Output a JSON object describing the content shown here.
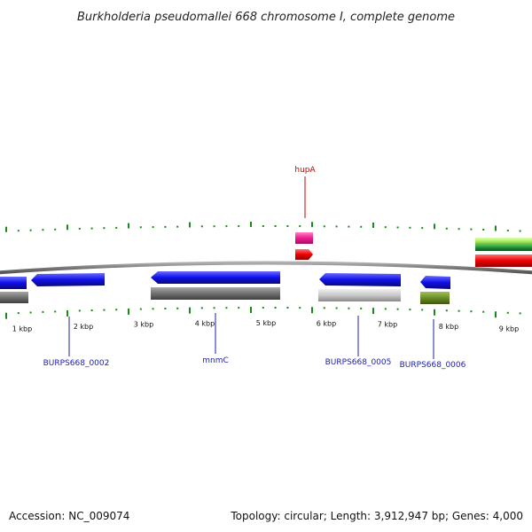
{
  "title": "Burkholderia pseudomallei 668 chromosome I, complete genome",
  "accession": "Accession: NC_009074",
  "summary": "Topology: circular; Length: 3,912,947 bp; Genes: 4,000",
  "colors": {
    "cds_blue": "#1010e8",
    "gene_gray": "#707070",
    "gene_light_gray": "#c8c8c8",
    "gene_olive": "#6b8e23",
    "rna_pink": "#ee1e90",
    "rna_red": "#ee0000",
    "green_light": "#a8f060",
    "green_dark": "#1e8a32",
    "tick_green": "#1a8a1a",
    "label_blue": "#1c1caa",
    "label_red": "#c80000",
    "backbone": "#777777"
  },
  "scale_labels": [
    "1 kbp",
    "2 kbp",
    "3 kbp",
    "4 kbp",
    "5 kbp",
    "6 kbp",
    "7 kbp",
    "8 kbp",
    "9 kbp"
  ],
  "gene_labels": [
    {
      "name": "BURPS668_0002",
      "color": "blue"
    },
    {
      "name": "mnmC",
      "color": "blue"
    },
    {
      "name": "BURPS668_0005",
      "color": "blue"
    },
    {
      "name": "BURPS668_0006",
      "color": "blue"
    },
    {
      "name": "hupA",
      "color": "red"
    }
  ]
}
